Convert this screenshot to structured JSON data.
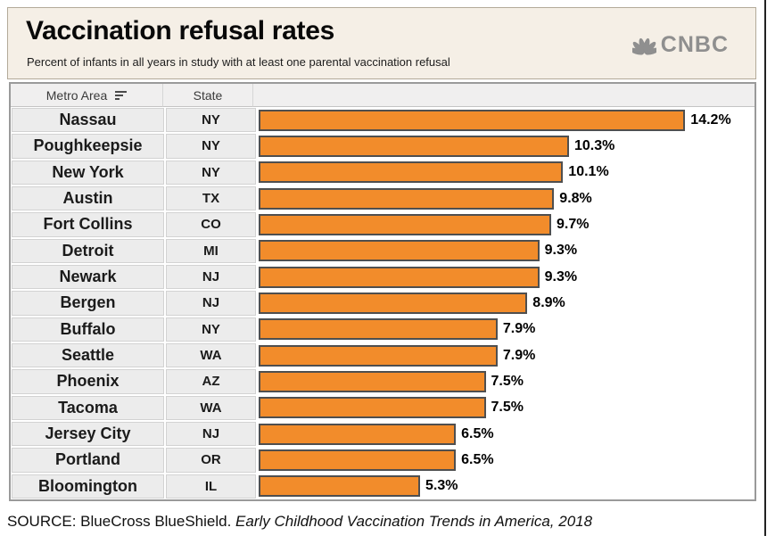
{
  "header": {
    "title": "Vaccination refusal rates",
    "subtitle": "Percent of infants in all years in study with at least one parental vaccination refusal",
    "logo_text": "CNBC"
  },
  "table": {
    "metro_header": "Metro Area",
    "state_header": "State"
  },
  "chart_data": {
    "type": "bar",
    "orientation": "horizontal",
    "title": "Vaccination refusal rates",
    "subtitle": "Percent of infants in all years in study with at least one parental vaccination refusal",
    "categories": [
      "Nassau",
      "Poughkeepsie",
      "New York",
      "Austin",
      "Fort Collins",
      "Detroit",
      "Newark",
      "Bergen",
      "Buffalo",
      "Seattle",
      "Phoenix",
      "Tacoma",
      "Jersey City",
      "Portland",
      "Bloomington"
    ],
    "states": [
      "NY",
      "NY",
      "NY",
      "TX",
      "CO",
      "MI",
      "NJ",
      "NJ",
      "NY",
      "WA",
      "AZ",
      "WA",
      "NJ",
      "OR",
      "IL"
    ],
    "values": [
      14.2,
      10.3,
      10.1,
      9.8,
      9.7,
      9.3,
      9.3,
      8.9,
      7.9,
      7.9,
      7.5,
      7.5,
      6.5,
      6.5,
      5.3
    ],
    "labels": [
      "14.2%",
      "10.3%",
      "10.1%",
      "9.8%",
      "9.7%",
      "9.3%",
      "9.3%",
      "8.9%",
      "7.9%",
      "7.9%",
      "7.5%",
      "7.5%",
      "6.5%",
      "6.5%",
      "5.3%"
    ],
    "unit": "%",
    "xlim": [
      0,
      15
    ],
    "sort": "descending",
    "grid": "off",
    "legend": "none",
    "bar_color": "#f28c2b",
    "bar_border_color": "#4f4f4f"
  },
  "source": {
    "prefix": "SOURCE: BlueCross BlueShield. ",
    "citation": "Early Childhood Vaccination Trends in America, 2018"
  },
  "colors": {
    "accent_orange": "#f28c2b",
    "header_background": "#f5efe6",
    "logo_gray": "#8f8f8f"
  }
}
